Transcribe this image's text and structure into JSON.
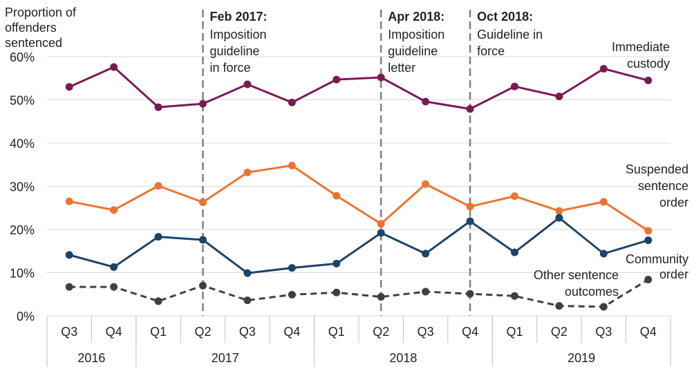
{
  "chart_data": {
    "type": "line",
    "ylabel_lines": [
      "Proportion of",
      "offenders",
      "sentenced"
    ],
    "ylim": [
      0,
      60
    ],
    "yticks": [
      0,
      10,
      20,
      30,
      40,
      50,
      60
    ],
    "ytick_labels": [
      "0%",
      "10%",
      "20%",
      "30%",
      "40%",
      "50%",
      "60%"
    ],
    "categories": [
      "Q3",
      "Q4",
      "Q1",
      "Q2",
      "Q3",
      "Q4",
      "Q1",
      "Q2",
      "Q3",
      "Q4",
      "Q1",
      "Q2",
      "Q3",
      "Q4"
    ],
    "years": [
      {
        "label": "2016",
        "start": 0,
        "span": 2
      },
      {
        "label": "2017",
        "start": 2,
        "span": 4
      },
      {
        "label": "2018",
        "start": 6,
        "span": 4
      },
      {
        "label": "2019",
        "start": 10,
        "span": 4
      }
    ],
    "grid": true,
    "series": [
      {
        "name": "Immediate custody",
        "label_lines": [
          "Immediate",
          "custody"
        ],
        "color": "#7b1a55",
        "dashed": false,
        "values": [
          53.0,
          57.6,
          48.3,
          49.1,
          53.6,
          49.4,
          54.7,
          55.2,
          49.6,
          47.9,
          53.1,
          50.8,
          57.2,
          54.5
        ]
      },
      {
        "name": "Suspended sentence order",
        "label_lines": [
          "Suspended",
          "sentence",
          "order"
        ],
        "color": "#ed7330",
        "dashed": false,
        "values": [
          26.5,
          24.5,
          30.1,
          26.3,
          33.2,
          34.8,
          27.8,
          21.3,
          30.5,
          25.3,
          27.7,
          24.3,
          26.4,
          19.7
        ]
      },
      {
        "name": "Community order",
        "label_lines": [
          "Community",
          "order"
        ],
        "color": "#1b4466",
        "dashed": false,
        "values": [
          14.1,
          11.3,
          18.3,
          17.6,
          9.9,
          11.1,
          12.1,
          19.2,
          14.4,
          21.9,
          14.7,
          22.7,
          14.4,
          17.5
        ]
      },
      {
        "name": "Other sentence outcomes",
        "label_lines": [
          "Other sentence",
          "outcomes"
        ],
        "color": "#404040",
        "dashed": true,
        "values": [
          6.7,
          6.7,
          3.4,
          7.0,
          3.6,
          4.9,
          5.4,
          4.4,
          5.6,
          5.1,
          4.6,
          2.3,
          2.1,
          8.4
        ]
      }
    ],
    "annotations": [
      {
        "title": "Feb 2017:",
        "lines": [
          "Imposition",
          "guideline",
          "in force"
        ],
        "at_index": 3
      },
      {
        "title": "Apr 2018:",
        "lines": [
          "Imposition",
          "guideline",
          "letter"
        ],
        "at_index": 7
      },
      {
        "title": "Oct 2018:",
        "lines": [
          "Guideline in",
          "force"
        ],
        "at_index": 9
      }
    ]
  }
}
